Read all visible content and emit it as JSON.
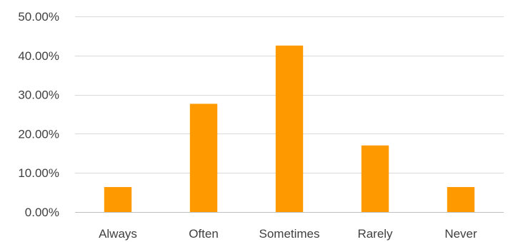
{
  "chart_data": {
    "type": "bar",
    "categories": [
      "Always",
      "Often",
      "Sometimes",
      "Rarely",
      "Never"
    ],
    "values": [
      6.38,
      27.66,
      42.55,
      17.02,
      6.38
    ],
    "value_format": "percent",
    "ylim": [
      0,
      50
    ],
    "yticks": [
      0,
      10,
      20,
      30,
      40,
      50
    ],
    "ytick_labels": [
      "0.00%",
      "10.00%",
      "20.00%",
      "30.00%",
      "40.00%",
      "50.00%"
    ],
    "title": "",
    "xlabel": "",
    "ylabel": "",
    "grid": true,
    "legend": "none",
    "bar_color": "#ff9900"
  }
}
